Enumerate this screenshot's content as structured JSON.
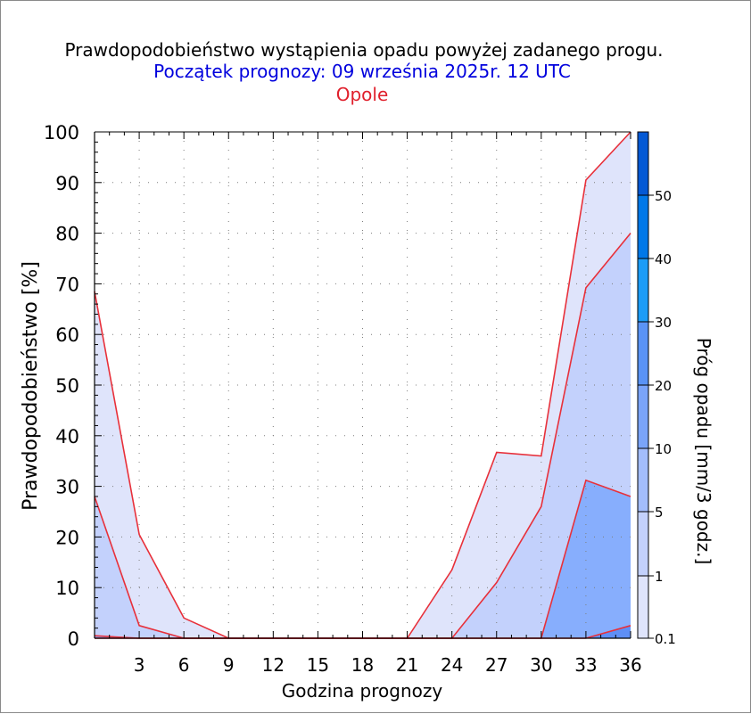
{
  "chart_data": {
    "type": "area",
    "title": "Prawdopodobieństwo wystąpienia opadu powyżej zadanego progu.",
    "subtitle": "Początek prognozy: 09 września 2025r. 12 UTC",
    "location": "Opole",
    "xlabel": "Godzina prognozy",
    "ylabel": "Prawdopodobieństwo [%]",
    "colorbar_label": "Próg opadu [mm/3 godz.]",
    "xlim": [
      0,
      36
    ],
    "ylim": [
      0,
      100
    ],
    "x": [
      0,
      3,
      6,
      9,
      12,
      15,
      18,
      21,
      24,
      27,
      30,
      33,
      36
    ],
    "x_tick_labels": [
      "3",
      "6",
      "9",
      "12",
      "15",
      "18",
      "21",
      "24",
      "27",
      "30",
      "33",
      "36"
    ],
    "y_tick_labels": [
      "0",
      "10",
      "20",
      "30",
      "40",
      "50",
      "60",
      "70",
      "80",
      "90",
      "100"
    ],
    "series": [
      {
        "name": "0.1",
        "color": "#dfe4fb",
        "values": [
          68.5,
          20.5,
          4,
          0,
          0,
          0,
          0,
          0,
          13.5,
          36.7,
          36,
          90.5,
          100
        ]
      },
      {
        "name": "1",
        "color": "#c3d1fc",
        "values": [
          28,
          2.5,
          0,
          0,
          0,
          0,
          0,
          0,
          0,
          11,
          26,
          69.2,
          80
        ]
      },
      {
        "name": "5",
        "color": "#87aefd",
        "values": [
          0.5,
          0,
          0,
          0,
          0,
          0,
          0,
          0,
          0,
          0,
          0,
          31.2,
          28
        ]
      },
      {
        "name": "10",
        "color": "#5e8ff6",
        "values": [
          0,
          0,
          0,
          0,
          0,
          0,
          0,
          0,
          0,
          0,
          0,
          0,
          2.5
        ]
      }
    ],
    "colorbar": {
      "levels": [
        0,
        0.1,
        1,
        5,
        10,
        20,
        30,
        40,
        50,
        60
      ],
      "labels": [
        "0.1",
        "1",
        "5",
        "10",
        "20",
        "30",
        "40",
        "50"
      ],
      "colors": [
        "#dfe4fb",
        "#c3d1fc",
        "#a3bdfc",
        "#7aa4f9",
        "#5a93f5",
        "#1c9cf7",
        "#0078e8",
        "#0459d4",
        "#003fb0"
      ]
    },
    "grid": true,
    "colors": {
      "title": "#000000",
      "subtitle": "#0000dd",
      "location": "#e0202c",
      "outline": "#e8303a",
      "grid": "#7d7d7d"
    }
  }
}
